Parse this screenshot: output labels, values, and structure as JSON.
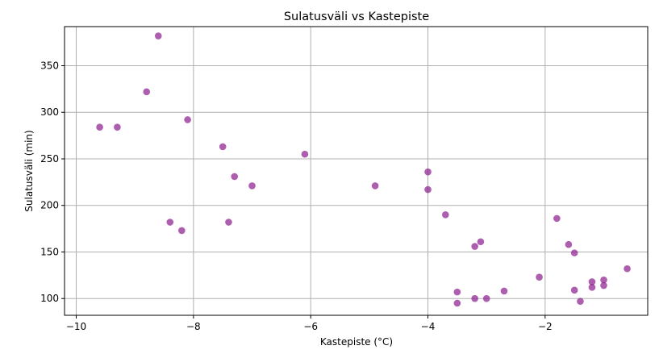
{
  "chart_data": {
    "type": "scatter",
    "title": "Sulatusväli vs Kastepiste",
    "xlabel": "Kastepiste (°C)",
    "ylabel": "Sulatusväli (min)",
    "xlim": [
      -10.2,
      -0.25
    ],
    "ylim": [
      82,
      392
    ],
    "xticks": [
      -10,
      -8,
      -6,
      -4,
      -2
    ],
    "xtick_labels": [
      "−10",
      "−8",
      "−6",
      "−4",
      "−2"
    ],
    "yticks": [
      100,
      150,
      200,
      250,
      300,
      350
    ],
    "ytick_labels": [
      "100",
      "150",
      "200",
      "250",
      "300",
      "350"
    ],
    "grid": true,
    "marker_color": "#8b1a8b",
    "points": [
      {
        "x": -9.6,
        "y": 284
      },
      {
        "x": -9.3,
        "y": 284
      },
      {
        "x": -8.8,
        "y": 322
      },
      {
        "x": -8.6,
        "y": 382
      },
      {
        "x": -8.4,
        "y": 182
      },
      {
        "x": -8.2,
        "y": 173
      },
      {
        "x": -8.1,
        "y": 292
      },
      {
        "x": -7.5,
        "y": 263
      },
      {
        "x": -7.4,
        "y": 182
      },
      {
        "x": -7.3,
        "y": 231
      },
      {
        "x": -7.0,
        "y": 221
      },
      {
        "x": -6.1,
        "y": 255
      },
      {
        "x": -4.9,
        "y": 221
      },
      {
        "x": -4.0,
        "y": 236
      },
      {
        "x": -4.0,
        "y": 217
      },
      {
        "x": -3.7,
        "y": 190
      },
      {
        "x": -3.5,
        "y": 107
      },
      {
        "x": -3.5,
        "y": 95
      },
      {
        "x": -3.2,
        "y": 156
      },
      {
        "x": -3.1,
        "y": 161
      },
      {
        "x": -3.2,
        "y": 100
      },
      {
        "x": -3.0,
        "y": 100
      },
      {
        "x": -2.7,
        "y": 108
      },
      {
        "x": -2.1,
        "y": 123
      },
      {
        "x": -1.8,
        "y": 186
      },
      {
        "x": -1.6,
        "y": 158
      },
      {
        "x": -1.5,
        "y": 149
      },
      {
        "x": -1.5,
        "y": 109
      },
      {
        "x": -1.4,
        "y": 97
      },
      {
        "x": -1.2,
        "y": 118
      },
      {
        "x": -1.2,
        "y": 112
      },
      {
        "x": -1.0,
        "y": 120
      },
      {
        "x": -1.0,
        "y": 114
      },
      {
        "x": -0.6,
        "y": 132
      }
    ]
  }
}
